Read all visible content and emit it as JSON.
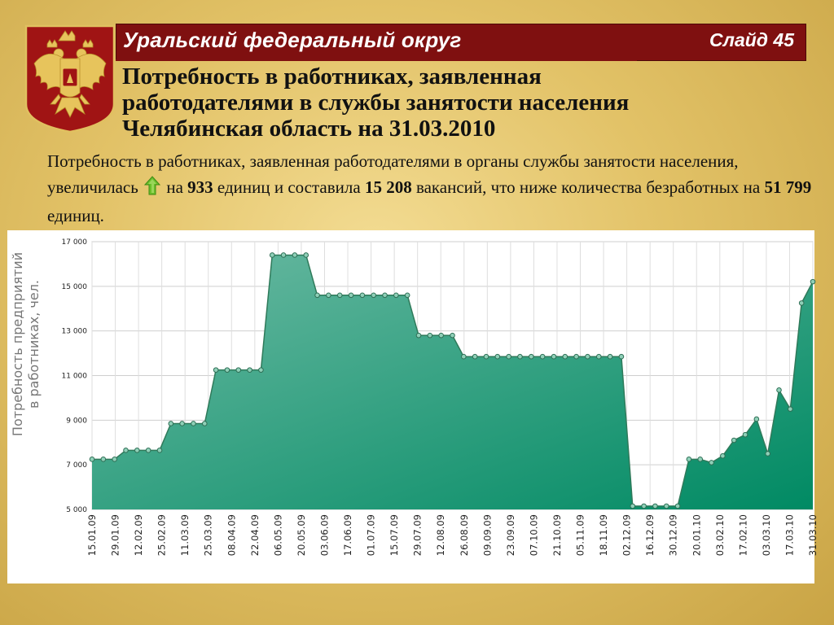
{
  "header": {
    "region": "Уральский федеральный округ",
    "slide": "Слайд 45"
  },
  "title": {
    "line1": "Потребность в работниках, заявленная",
    "line2": "работодателями в службы занятости населения",
    "line3": "Челябинская область на 31.03.2010"
  },
  "lead": {
    "p1": "Потребность в работниках, заявленная работодателями в органы службы занятости населения, увеличилась",
    "p2": "на",
    "v1": "933",
    "p3": "единиц и составила",
    "v2": "15 208",
    "p4": "вакансий, что ниже количества безработных на",
    "v3": "51 799",
    "p5": "единиц."
  },
  "colors": {
    "accent_bar": "#7f1010",
    "area_top": "#6cbaa3",
    "area_bottom": "#008a63",
    "line": "#2f7a5a",
    "arrow": "#6bbf2a"
  },
  "icons": {
    "emblem": "russian-coat-of-arms",
    "arrow": "up-arrow-icon"
  },
  "chart_data": {
    "type": "area",
    "ylabel": "Потребность предприятий в работниках, чел.",
    "ylim": [
      5000,
      17000
    ],
    "yticks": [
      5000,
      7000,
      9000,
      11000,
      13000,
      15000,
      17000
    ],
    "ytick_labels": [
      "5 000",
      "7 000",
      "9 000",
      "11 000",
      "13 000",
      "15 000",
      "17 000"
    ],
    "xtick_labels": [
      "15.01.09",
      "29.01.09",
      "12.02.09",
      "25.02.09",
      "11.03.09",
      "25.03.09",
      "08.04.09",
      "22.04.09",
      "06.05.09",
      "20.05.09",
      "03.06.09",
      "17.06.09",
      "01.07.09",
      "15.07.09",
      "29.07.09",
      "12.08.09",
      "26.08.09",
      "09.09.09",
      "23.09.09",
      "07.10.09",
      "21.10.09",
      "05.11.09",
      "18.11.09",
      "02.12.09",
      "16.12.09",
      "30.12.09",
      "20.01.10",
      "03.02.10",
      "17.02.10",
      "03.03.10",
      "17.03.10",
      "31.03.10"
    ],
    "grid": true,
    "series": [
      {
        "values": [
          7250,
          7250,
          7250,
          7650,
          7650,
          7650,
          7650,
          8850,
          8850,
          8850,
          8850,
          11250,
          11250,
          11250,
          11250,
          11250,
          16400,
          16400,
          16400,
          16400,
          14600,
          14600,
          14600,
          14600,
          14600,
          14600,
          14600,
          14600,
          14600,
          12800,
          12800,
          12800,
          12800,
          11850,
          11850,
          11850,
          11850,
          11850,
          11850,
          11850,
          11850,
          11850,
          11850,
          11850,
          11850,
          11850,
          11850,
          11850,
          5150,
          5150,
          5150,
          5150,
          5150,
          7250,
          7250,
          7100,
          7400,
          8100,
          8350,
          9050,
          7500,
          10350,
          9500,
          14250,
          15208
        ]
      }
    ]
  }
}
